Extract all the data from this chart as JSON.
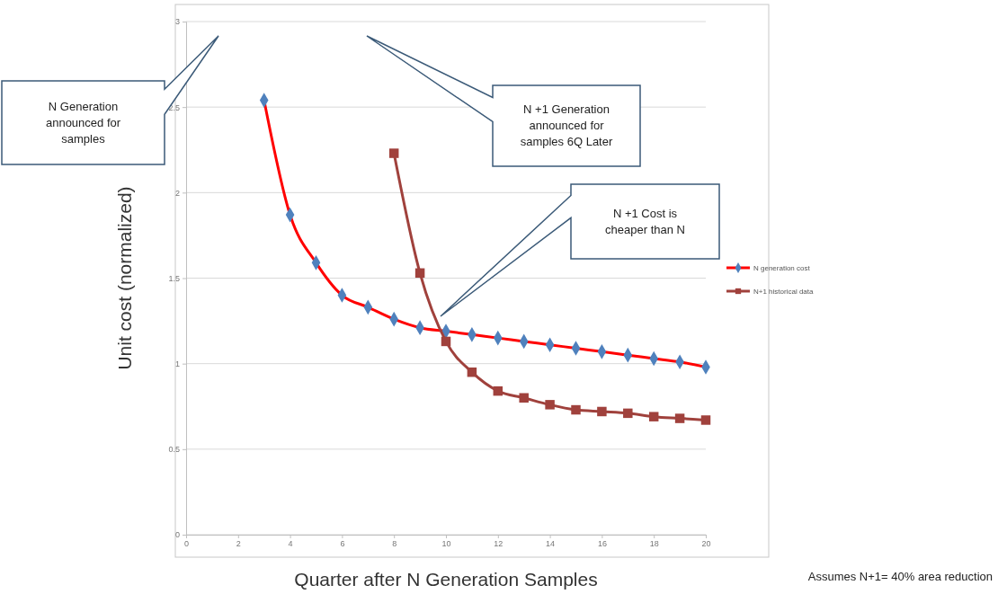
{
  "chart_data": {
    "type": "line",
    "xlabel": "Quarter after N Generation  Samples",
    "ylabel": "Unit cost (normalized)",
    "xlim": [
      0,
      20
    ],
    "xticks": [
      0,
      2,
      4,
      6,
      8,
      10,
      12,
      14,
      16,
      18,
      20
    ],
    "ylim": [
      0,
      3
    ],
    "yticks": [
      0,
      0.5,
      1,
      1.5,
      2,
      2.5,
      3
    ],
    "grid": "y",
    "legend": "right",
    "series": [
      {
        "name": "N generation cost",
        "color": "#ff0000",
        "colors": [
          "#4f81bd",
          "#4f81bd",
          "#4f81bd",
          "#4f81bd",
          "#4f81bd",
          "#4f81bd",
          "#4f81bd",
          "#4f81bd",
          "#4f81bd",
          "#4f81bd",
          "#4f81bd",
          "#4f81bd",
          "#4f81bd",
          "#4f81bd",
          "#4f81bd",
          "#4f81bd",
          "#4f81bd",
          "#4f81bd"
        ],
        "marker": "diamond",
        "x": [
          3,
          4,
          5,
          6,
          7,
          8,
          9,
          10,
          11,
          12,
          13,
          14,
          15,
          16,
          17,
          18,
          19,
          20
        ],
        "values": [
          2.54,
          1.87,
          1.59,
          1.4,
          1.33,
          1.26,
          1.21,
          1.19,
          1.17,
          1.15,
          1.13,
          1.11,
          1.09,
          1.07,
          1.05,
          1.03,
          1.01,
          0.98
        ]
      },
      {
        "name": "N+1 historical data",
        "color": "#a0413c",
        "marker": "square",
        "x": [
          8,
          9,
          10,
          11,
          12,
          13,
          14,
          15,
          16,
          17,
          18,
          19,
          20
        ],
        "values": [
          2.23,
          1.53,
          1.13,
          0.95,
          0.84,
          0.8,
          0.76,
          0.73,
          0.72,
          0.71,
          0.69,
          0.68,
          0.67
        ]
      }
    ],
    "annotations": [
      "N  Generation announced for samples",
      "N +1 Generation announced for samples 6Q Later",
      "N +1 Cost is cheaper than N",
      "Assumes N+1= 40% area reduction"
    ]
  }
}
